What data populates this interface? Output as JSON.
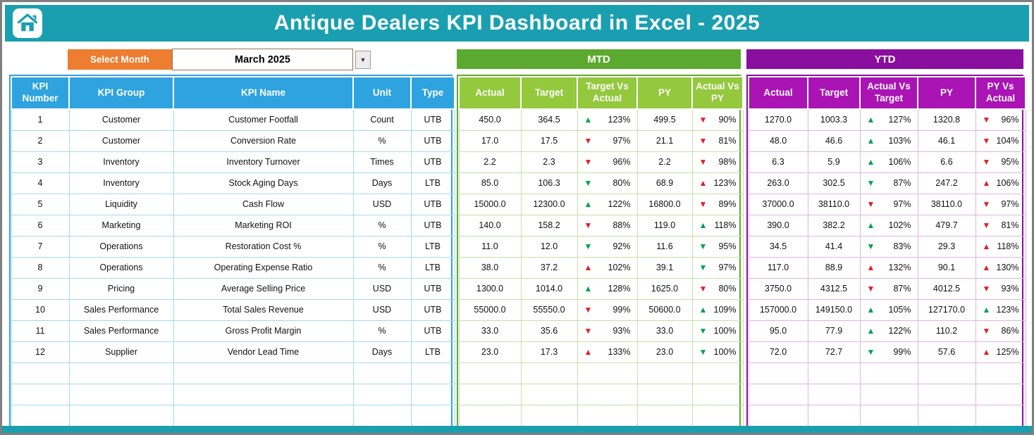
{
  "header": {
    "title": "Antique Dealers KPI Dashboard in Excel - 2025"
  },
  "controls": {
    "select_month_label": "Select Month",
    "selected_month": "March 2025",
    "dropdown_icon": "▼"
  },
  "kpi_table": {
    "headers": [
      "KPI Number",
      "KPI Group",
      "KPI Name",
      "Unit",
      "Type"
    ],
    "rows": [
      {
        "number": "1",
        "group": "Customer",
        "name": "Customer Footfall",
        "unit": "Count",
        "type": "UTB"
      },
      {
        "number": "2",
        "group": "Customer",
        "name": "Conversion Rate",
        "unit": "%",
        "type": "UTB"
      },
      {
        "number": "3",
        "group": "Inventory",
        "name": "Inventory Turnover",
        "unit": "Times",
        "type": "UTB"
      },
      {
        "number": "4",
        "group": "Inventory",
        "name": "Stock Aging Days",
        "unit": "Days",
        "type": "LTB"
      },
      {
        "number": "5",
        "group": "Liquidity",
        "name": "Cash Flow",
        "unit": "USD",
        "type": "UTB"
      },
      {
        "number": "6",
        "group": "Marketing",
        "name": "Marketing ROI",
        "unit": "%",
        "type": "UTB"
      },
      {
        "number": "7",
        "group": "Operations",
        "name": "Restoration Cost %",
        "unit": "%",
        "type": "LTB"
      },
      {
        "number": "8",
        "group": "Operations",
        "name": "Operating Expense Ratio",
        "unit": "%",
        "type": "LTB"
      },
      {
        "number": "9",
        "group": "Pricing",
        "name": "Average Selling Price",
        "unit": "USD",
        "type": "UTB"
      },
      {
        "number": "10",
        "group": "Sales Performance",
        "name": "Total Sales Revenue",
        "unit": "USD",
        "type": "UTB"
      },
      {
        "number": "11",
        "group": "Sales Performance",
        "name": "Gross Profit Margin",
        "unit": "%",
        "type": "UTB"
      },
      {
        "number": "12",
        "group": "Supplier",
        "name": "Vendor Lead Time",
        "unit": "Days",
        "type": "LTB"
      }
    ]
  },
  "mtd": {
    "title": "MTD",
    "headers": [
      "Actual",
      "Target",
      "Target Vs Actual",
      "PY",
      "Actual Vs PY"
    ],
    "rows": [
      {
        "actual": "450.0",
        "target": "364.5",
        "target_vs_actual": {
          "dir": "up",
          "color": "green",
          "value": "123%"
        },
        "py": "499.5",
        "actual_vs_py": {
          "dir": "down",
          "color": "red",
          "value": "90%"
        }
      },
      {
        "actual": "17.0",
        "target": "17.5",
        "target_vs_actual": {
          "dir": "down",
          "color": "red",
          "value": "97%"
        },
        "py": "21.1",
        "actual_vs_py": {
          "dir": "down",
          "color": "red",
          "value": "81%"
        }
      },
      {
        "actual": "2.2",
        "target": "2.3",
        "target_vs_actual": {
          "dir": "down",
          "color": "red",
          "value": "96%"
        },
        "py": "2.2",
        "actual_vs_py": {
          "dir": "down",
          "color": "red",
          "value": "98%"
        }
      },
      {
        "actual": "85.0",
        "target": "106.3",
        "target_vs_actual": {
          "dir": "down",
          "color": "green",
          "value": "80%"
        },
        "py": "68.9",
        "actual_vs_py": {
          "dir": "up",
          "color": "red",
          "value": "123%"
        }
      },
      {
        "actual": "15000.0",
        "target": "12300.0",
        "target_vs_actual": {
          "dir": "up",
          "color": "green",
          "value": "122%"
        },
        "py": "16800.0",
        "actual_vs_py": {
          "dir": "down",
          "color": "red",
          "value": "89%"
        }
      },
      {
        "actual": "140.0",
        "target": "158.2",
        "target_vs_actual": {
          "dir": "down",
          "color": "red",
          "value": "88%"
        },
        "py": "119.0",
        "actual_vs_py": {
          "dir": "up",
          "color": "green",
          "value": "118%"
        }
      },
      {
        "actual": "11.0",
        "target": "12.0",
        "target_vs_actual": {
          "dir": "down",
          "color": "green",
          "value": "92%"
        },
        "py": "11.6",
        "actual_vs_py": {
          "dir": "down",
          "color": "green",
          "value": "95%"
        }
      },
      {
        "actual": "38.0",
        "target": "37.2",
        "target_vs_actual": {
          "dir": "up",
          "color": "red",
          "value": "102%"
        },
        "py": "39.1",
        "actual_vs_py": {
          "dir": "down",
          "color": "green",
          "value": "97%"
        }
      },
      {
        "actual": "1300.0",
        "target": "1014.0",
        "target_vs_actual": {
          "dir": "up",
          "color": "green",
          "value": "128%"
        },
        "py": "1625.0",
        "actual_vs_py": {
          "dir": "down",
          "color": "red",
          "value": "80%"
        }
      },
      {
        "actual": "55000.0",
        "target": "55550.0",
        "target_vs_actual": {
          "dir": "down",
          "color": "red",
          "value": "99%"
        },
        "py": "50600.0",
        "actual_vs_py": {
          "dir": "up",
          "color": "green",
          "value": "109%"
        }
      },
      {
        "actual": "33.0",
        "target": "35.6",
        "target_vs_actual": {
          "dir": "down",
          "color": "red",
          "value": "93%"
        },
        "py": "33.0",
        "actual_vs_py": {
          "dir": "down",
          "color": "green",
          "value": "100%"
        }
      },
      {
        "actual": "23.0",
        "target": "17.3",
        "target_vs_actual": {
          "dir": "up",
          "color": "red",
          "value": "133%"
        },
        "py": "23.0",
        "actual_vs_py": {
          "dir": "down",
          "color": "green",
          "value": "100%"
        }
      }
    ]
  },
  "ytd": {
    "title": "YTD",
    "headers": [
      "Actual",
      "Target",
      "Actual Vs Target",
      "PY",
      "PY Vs Actual"
    ],
    "rows": [
      {
        "actual": "1270.0",
        "target": "1003.3",
        "actual_vs_target": {
          "dir": "up",
          "color": "green",
          "value": "127%"
        },
        "py": "1320.8",
        "py_vs_actual": {
          "dir": "down",
          "color": "red",
          "value": "96%"
        }
      },
      {
        "actual": "48.0",
        "target": "46.6",
        "actual_vs_target": {
          "dir": "up",
          "color": "green",
          "value": "103%"
        },
        "py": "46.1",
        "py_vs_actual": {
          "dir": "down",
          "color": "red",
          "value": "104%"
        }
      },
      {
        "actual": "6.3",
        "target": "5.9",
        "actual_vs_target": {
          "dir": "up",
          "color": "green",
          "value": "106%"
        },
        "py": "6.6",
        "py_vs_actual": {
          "dir": "down",
          "color": "red",
          "value": "95%"
        }
      },
      {
        "actual": "263.0",
        "target": "302.5",
        "actual_vs_target": {
          "dir": "down",
          "color": "green",
          "value": "87%"
        },
        "py": "247.2",
        "py_vs_actual": {
          "dir": "up",
          "color": "red",
          "value": "106%"
        }
      },
      {
        "actual": "37000.0",
        "target": "38110.0",
        "actual_vs_target": {
          "dir": "down",
          "color": "red",
          "value": "97%"
        },
        "py": "38110.0",
        "py_vs_actual": {
          "dir": "down",
          "color": "red",
          "value": "97%"
        }
      },
      {
        "actual": "390.0",
        "target": "382.2",
        "actual_vs_target": {
          "dir": "up",
          "color": "green",
          "value": "102%"
        },
        "py": "479.7",
        "py_vs_actual": {
          "dir": "down",
          "color": "red",
          "value": "81%"
        }
      },
      {
        "actual": "34.5",
        "target": "41.4",
        "actual_vs_target": {
          "dir": "down",
          "color": "green",
          "value": "83%"
        },
        "py": "29.3",
        "py_vs_actual": {
          "dir": "up",
          "color": "red",
          "value": "118%"
        }
      },
      {
        "actual": "117.0",
        "target": "88.9",
        "actual_vs_target": {
          "dir": "up",
          "color": "red",
          "value": "132%"
        },
        "py": "90.1",
        "py_vs_actual": {
          "dir": "up",
          "color": "red",
          "value": "130%"
        }
      },
      {
        "actual": "3750.0",
        "target": "4312.5",
        "actual_vs_target": {
          "dir": "down",
          "color": "red",
          "value": "87%"
        },
        "py": "4012.5",
        "py_vs_actual": {
          "dir": "down",
          "color": "red",
          "value": "93%"
        }
      },
      {
        "actual": "157000.0",
        "target": "149150.0",
        "actual_vs_target": {
          "dir": "up",
          "color": "green",
          "value": "105%"
        },
        "py": "127170.0",
        "py_vs_actual": {
          "dir": "up",
          "color": "green",
          "value": "123%"
        }
      },
      {
        "actual": "95.0",
        "target": "77.9",
        "actual_vs_target": {
          "dir": "up",
          "color": "green",
          "value": "122%"
        },
        "py": "110.2",
        "py_vs_actual": {
          "dir": "down",
          "color": "red",
          "value": "86%"
        }
      },
      {
        "actual": "72.0",
        "target": "72.7",
        "actual_vs_target": {
          "dir": "down",
          "color": "green",
          "value": "99%"
        },
        "py": "57.6",
        "py_vs_actual": {
          "dir": "up",
          "color": "red",
          "value": "125%"
        }
      }
    ]
  },
  "colors": {
    "teal": "#1A9FB0",
    "orange": "#ED7D31",
    "blue_header": "#2EA3DF",
    "green_band": "#5BA92F",
    "green_header": "#94C83D",
    "purple_band": "#8A0F9E",
    "purple_header": "#AA14B4",
    "arrow_green": "#00A14B",
    "arrow_red": "#E31E24"
  }
}
